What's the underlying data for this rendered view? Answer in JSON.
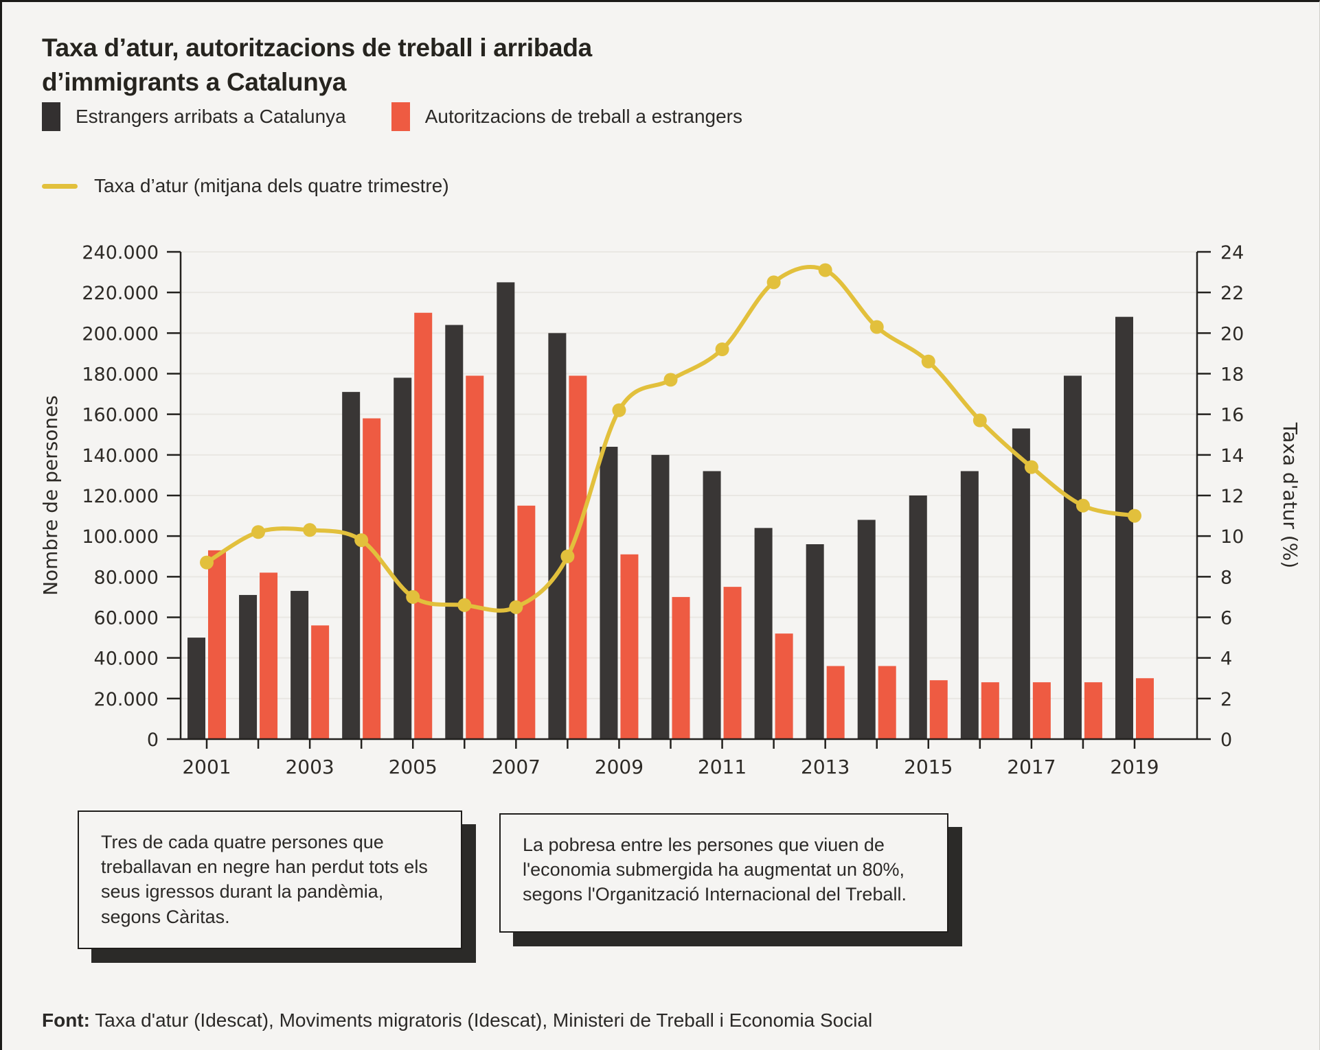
{
  "page": {
    "title_line1": "Taxa d’atur, autoritzacions de treball i arribada",
    "title_line2": "d’immigrants a Catalunya",
    "footer_label": "Font:",
    "footer_text": " Taxa d'atur (Idescat), Moviments migratoris (Idescat), Ministeri de Treball i Economia Social"
  },
  "notes": [
    {
      "text": "Tres de cada quatre persones que treballavan en negre han perdut tots els seus igressos durant la pandèmia, segons Càritas."
    },
    {
      "text": "La pobresa entre les persones que viuen de l'economia submergida ha augmentat un 80%, segons l'Organització Internacional del Treball."
    }
  ],
  "colors": {
    "background": "#f5f4f2",
    "bar_dark": "#393635",
    "bar_red": "#ee5b42",
    "line_yellow": "#e2c03c",
    "axis": "#23211e",
    "grid": "#e9e7e3",
    "text": "#2d2a26"
  },
  "chart_data": {
    "type": "combo",
    "categories": [
      2001,
      2002,
      2003,
      2004,
      2005,
      2006,
      2007,
      2008,
      2009,
      2010,
      2011,
      2012,
      2013,
      2014,
      2015,
      2016,
      2017,
      2018,
      2019
    ],
    "series": [
      {
        "name": "Estrangers arribats a Catalunya",
        "type": "bar",
        "axis": "left",
        "color": "#393635",
        "values": [
          50000,
          71000,
          73000,
          171000,
          178000,
          204000,
          225000,
          200000,
          144000,
          140000,
          132000,
          104000,
          96000,
          108000,
          120000,
          132000,
          153000,
          179000,
          208000
        ]
      },
      {
        "name": "Autoritzacions de treball a estrangers",
        "type": "bar",
        "axis": "left",
        "color": "#ee5b42",
        "values": [
          93000,
          82000,
          56000,
          158000,
          210000,
          179000,
          115000,
          179000,
          91000,
          70000,
          75000,
          52000,
          36000,
          36000,
          29000,
          28000,
          28000,
          28000,
          30000
        ]
      },
      {
        "name": "Taxa d’atur (mitjana dels quatre trimestre)",
        "type": "line",
        "axis": "right",
        "color": "#e2c03c",
        "values": [
          8.7,
          10.2,
          10.3,
          9.8,
          7.0,
          6.6,
          6.5,
          9.0,
          16.2,
          17.7,
          19.2,
          22.5,
          23.1,
          20.3,
          18.6,
          15.7,
          13.4,
          11.5,
          11.0
        ]
      }
    ],
    "left_axis": {
      "label": "Nombre de persones",
      "min": 0,
      "max": 240000,
      "step": 20000
    },
    "right_axis": {
      "label": "Taxa d'atur (%)",
      "min": 0,
      "max": 24,
      "step": 2
    },
    "x_axis": {
      "labeled_years": [
        2001,
        2003,
        2005,
        2007,
        2009,
        2011,
        2013,
        2015,
        2017,
        2019
      ]
    },
    "grid": true,
    "legend_position": "top"
  }
}
